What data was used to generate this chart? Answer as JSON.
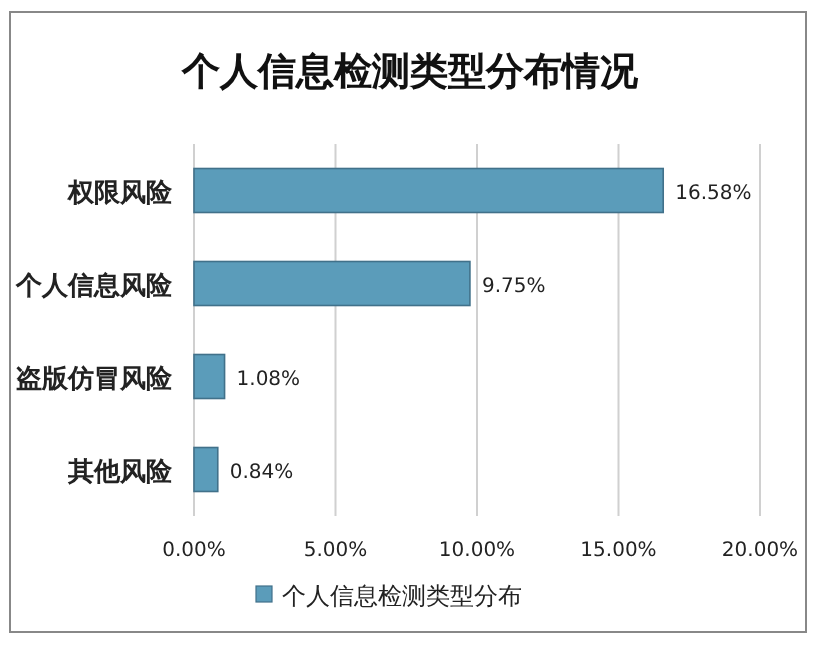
{
  "chart_data": {
    "type": "bar",
    "orientation": "horizontal",
    "title": "个人信息检测类型分布情况",
    "categories": [
      "权限风险",
      "个人信息风险",
      "盗版仿冒风险",
      "其他风险"
    ],
    "series": [
      {
        "name": "个人信息检测类型分布",
        "color": "#5b9cba",
        "values": [
          16.58,
          9.75,
          1.08,
          0.84
        ],
        "value_labels": [
          "16.58%",
          "9.75%",
          "1.08%",
          "0.84%"
        ]
      }
    ],
    "xlim": [
      0,
      20
    ],
    "xticks": [
      {
        "value": 0,
        "label": "0.00%"
      },
      {
        "value": 5,
        "label": "5.00%"
      },
      {
        "value": 10,
        "label": "10.00%"
      },
      {
        "value": 15,
        "label": "15.00%"
      },
      {
        "value": 20,
        "label": "20.00%"
      }
    ],
    "grid": "x",
    "legend": "bottom"
  }
}
